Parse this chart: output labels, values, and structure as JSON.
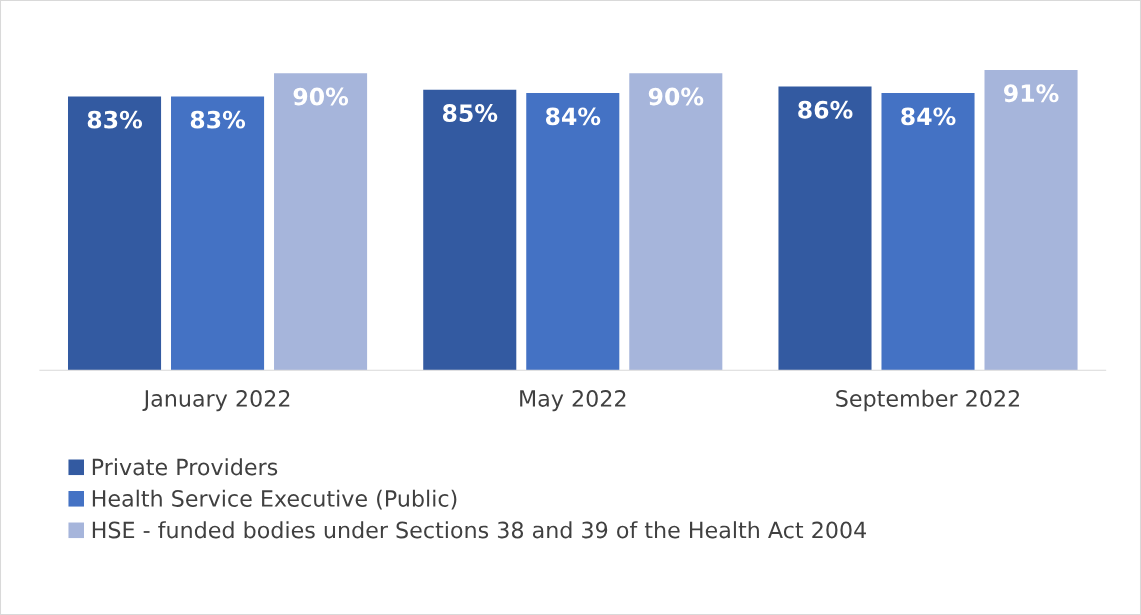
{
  "chart_data": {
    "type": "bar",
    "categories": [
      "January 2022",
      "May 2022",
      "September 2022"
    ],
    "series": [
      {
        "name": "Private Providers",
        "color": "#335aa1",
        "values": [
          83,
          85,
          86
        ],
        "value_labels": [
          "83%",
          "85%",
          "86%"
        ]
      },
      {
        "name": "Health Service Executive (Public)",
        "color": "#4472c4",
        "values": [
          83,
          84,
          84
        ],
        "value_labels": [
          "83%",
          "84%",
          "84%"
        ]
      },
      {
        "name": "HSE - funded bodies under Sections 38 and 39 of the Health Act 2004",
        "color": "#a6b5db",
        "values": [
          90,
          90,
          91
        ],
        "value_labels": [
          "90%",
          "90%",
          "91%"
        ]
      }
    ],
    "grid": false,
    "legend": "bottom"
  }
}
